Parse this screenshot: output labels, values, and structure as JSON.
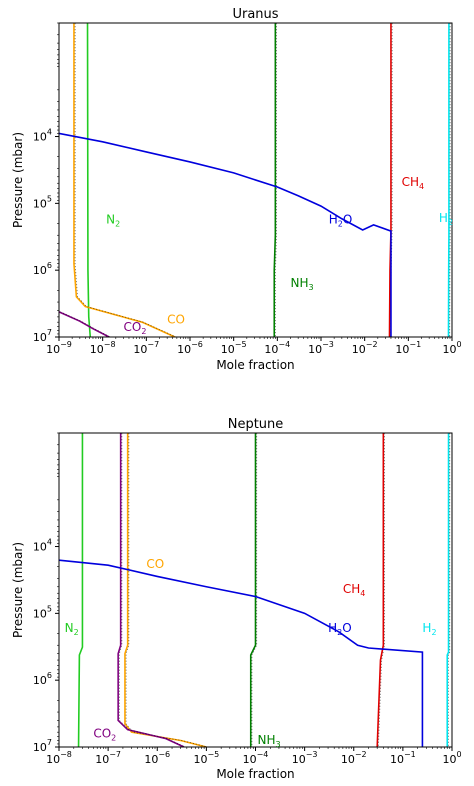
{
  "chart_data": [
    {
      "type": "line",
      "title": "Uranus",
      "xlabel": "Mole fraction",
      "ylabel": "Pressure (mbar)",
      "x_scale": "log",
      "y_scale": "log",
      "y_inverted": true,
      "xlim": [
        1e-09,
        1
      ],
      "ylim": [
        10000000,
        200
      ],
      "x_ticks": [
        {
          "base": "10",
          "exp": "−9",
          "value": 1e-09
        },
        {
          "base": "10",
          "exp": "−8",
          "value": 1e-08
        },
        {
          "base": "10",
          "exp": "−7",
          "value": 1e-07
        },
        {
          "base": "10",
          "exp": "−6",
          "value": 1e-06
        },
        {
          "base": "10",
          "exp": "−5",
          "value": 1e-05
        },
        {
          "base": "10",
          "exp": "−4",
          "value": 0.0001
        },
        {
          "base": "10",
          "exp": "−3",
          "value": 0.001
        },
        {
          "base": "10",
          "exp": "−2",
          "value": 0.01
        },
        {
          "base": "10",
          "exp": "−1",
          "value": 0.1
        },
        {
          "base": "10",
          "exp": "0",
          "value": 1
        }
      ],
      "y_ticks": [
        {
          "base": "10",
          "exp": "4",
          "value": 10000
        },
        {
          "base": "10",
          "exp": "5",
          "value": 100000
        },
        {
          "base": "10",
          "exp": "6",
          "value": 1000000
        },
        {
          "base": "10",
          "exp": "7",
          "value": 10000000
        }
      ],
      "series": [
        {
          "name": "H2",
          "color": "#00e5ee",
          "points": [
            [
              0.85,
              200
            ],
            [
              0.85,
              300000
            ],
            [
              0.84,
              1000000
            ],
            [
              0.83,
              10000000
            ]
          ],
          "dotted": true
        },
        {
          "name": "CH4",
          "color": "#e00000",
          "points": [
            [
              0.04,
              200
            ],
            [
              0.04,
              250000
            ],
            [
              0.038,
              1000000
            ],
            [
              0.037,
              10000000
            ]
          ],
          "dotted": true
        },
        {
          "name": "NH3",
          "color": "#008000",
          "points": [
            [
              9e-05,
              200
            ],
            [
              9e-05,
              300000
            ],
            [
              8.5e-05,
              1000000
            ],
            [
              8.5e-05,
              10000000
            ]
          ],
          "dotted": true
        },
        {
          "name": "N2",
          "color": "#22cc22",
          "points": [
            [
              4.5e-09,
              200
            ],
            [
              4.6e-09,
              1000000
            ],
            [
              4.8e-09,
              5000000
            ],
            [
              5.2e-09,
              10000000
            ]
          ],
          "dotted": false
        },
        {
          "name": "CO",
          "color": "#ffa500",
          "points": [
            [
              2.2e-09,
              200
            ],
            [
              2.2e-09,
              800000
            ],
            [
              2.5e-09,
              2500000
            ],
            [
              4e-09,
              3500000
            ],
            [
              8e-08,
              6000000
            ],
            [
              4.5e-07,
              10000000
            ]
          ],
          "dotted": true
        },
        {
          "name": "CO2",
          "color": "#800080",
          "points": [
            [
              1e-09,
              4200000
            ],
            [
              3e-09,
              5800000
            ],
            [
              6e-09,
              7500000
            ],
            [
              1.4e-08,
              10000000
            ]
          ],
          "dotted": true
        },
        {
          "name": "H2O",
          "color": "#0000dd",
          "points": [
            [
              1e-09,
              9000
            ],
            [
              1e-08,
              12000
            ],
            [
              1e-07,
              17000
            ],
            [
              1e-06,
              24000
            ],
            [
              1e-05,
              35000
            ],
            [
              0.0001,
              57000
            ],
            [
              0.0003,
              77000
            ],
            [
              0.001,
              110000
            ],
            [
              0.003,
              170000
            ],
            [
              0.009,
              250000
            ],
            [
              0.016,
              210000
            ],
            [
              0.04,
              260000
            ],
            [
              0.04,
              10000000
            ]
          ],
          "dotted": false
        }
      ],
      "labels": [
        {
          "base": "H",
          "sub": "2",
          "color": "#00e5ee",
          "x": 0.5,
          "y": 190000
        },
        {
          "base": "CH",
          "sub": "4",
          "color": "#e00000",
          "x": 0.07,
          "y": 55000
        },
        {
          "base": "NH",
          "sub": "3",
          "color": "#008000",
          "x": 0.0002,
          "y": 1800000
        },
        {
          "base": "N",
          "sub": "2",
          "color": "#22cc22",
          "x": 1.2e-08,
          "y": 200000
        },
        {
          "base": "CO",
          "sub": "",
          "color": "#ffa500",
          "x": 3e-07,
          "y": 6300000
        },
        {
          "base": "CO",
          "sub": "2",
          "color": "#800080",
          "x": 3e-08,
          "y": 8200000
        },
        {
          "base": "H",
          "sub": "2",
          "suffix": "O",
          "color": "#0000dd",
          "x": 0.0015,
          "y": 200000
        }
      ]
    },
    {
      "type": "line",
      "title": "Neptune",
      "xlabel": "Mole fraction",
      "ylabel": "Pressure (mbar)",
      "x_scale": "log",
      "y_scale": "log",
      "y_inverted": true,
      "xlim": [
        1e-08,
        1
      ],
      "ylim": [
        10000000,
        200
      ],
      "x_ticks": [
        {
          "base": "10",
          "exp": "−8",
          "value": 1e-08
        },
        {
          "base": "10",
          "exp": "−7",
          "value": 1e-07
        },
        {
          "base": "10",
          "exp": "−6",
          "value": 1e-06
        },
        {
          "base": "10",
          "exp": "−5",
          "value": 1e-05
        },
        {
          "base": "10",
          "exp": "−4",
          "value": 0.0001
        },
        {
          "base": "10",
          "exp": "−3",
          "value": 0.001
        },
        {
          "base": "10",
          "exp": "−2",
          "value": 0.01
        },
        {
          "base": "10",
          "exp": "−1",
          "value": 0.1
        },
        {
          "base": "10",
          "exp": "0",
          "value": 1
        }
      ],
      "y_ticks": [
        {
          "base": "10",
          "exp": "4",
          "value": 10000
        },
        {
          "base": "10",
          "exp": "5",
          "value": 100000
        },
        {
          "base": "10",
          "exp": "6",
          "value": 1000000
        },
        {
          "base": "10",
          "exp": "7",
          "value": 10000000
        }
      ],
      "series": [
        {
          "name": "H2",
          "color": "#00e5ee",
          "points": [
            [
              0.85,
              200
            ],
            [
              0.85,
              380000
            ],
            [
              0.8,
              420000
            ],
            [
              0.8,
              10000000
            ]
          ],
          "dotted": true
        },
        {
          "name": "CH4",
          "color": "#e00000",
          "points": [
            [
              0.04,
              200
            ],
            [
              0.04,
              300000
            ],
            [
              0.035,
              500000
            ],
            [
              0.03,
              10000000
            ]
          ],
          "dotted": true
        },
        {
          "name": "NH3",
          "color": "#008000",
          "points": [
            [
              0.0001,
              200
            ],
            [
              0.0001,
              300000
            ],
            [
              8e-05,
              420000
            ],
            [
              8e-05,
              10000000
            ]
          ],
          "dotted": true
        },
        {
          "name": "N2",
          "color": "#22cc22",
          "points": [
            [
              3e-08,
              200
            ],
            [
              3e-08,
              320000
            ],
            [
              2.6e-08,
              420000
            ],
            [
              2.5e-08,
              10000000
            ]
          ],
          "dotted": false
        },
        {
          "name": "CO",
          "color": "#ffa500",
          "points": [
            [
              2.5e-07,
              200
            ],
            [
              2.5e-07,
              300000
            ],
            [
              2.2e-07,
              400000
            ],
            [
              2.2e-07,
              4500000
            ],
            [
              3e-07,
              6000000
            ],
            [
              3e-06,
              8000000
            ],
            [
              1e-05,
              10000000
            ]
          ],
          "dotted": true
        },
        {
          "name": "CO2",
          "color": "#800080",
          "points": [
            [
              1.8e-07,
              200
            ],
            [
              1.8e-07,
              300000
            ],
            [
              1.6e-07,
              400000
            ],
            [
              1.6e-07,
              4000000
            ],
            [
              2.5e-07,
              5500000
            ],
            [
              1.5e-06,
              7500000
            ],
            [
              3.5e-06,
              10000000
            ]
          ],
          "dotted": true
        },
        {
          "name": "H2O",
          "color": "#0000dd",
          "points": [
            [
              1e-08,
              16000
            ],
            [
              1e-07,
              19000
            ],
            [
              1e-06,
              28000
            ],
            [
              1e-05,
              40000
            ],
            [
              0.0001,
              56000
            ],
            [
              0.001,
              100000
            ],
            [
              0.005,
              190000
            ],
            [
              0.012,
              300000
            ],
            [
              0.02,
              330000
            ],
            [
              0.25,
              380000
            ],
            [
              0.25,
              10000000
            ]
          ],
          "dotted": false
        }
      ],
      "labels": [
        {
          "base": "H",
          "sub": "2",
          "color": "#00e5ee",
          "x": 0.25,
          "y": 190000
        },
        {
          "base": "CH",
          "sub": "4",
          "color": "#e00000",
          "x": 0.006,
          "y": 50000
        },
        {
          "base": "NH",
          "sub": "3",
          "color": "#008000",
          "x": 0.00011,
          "y": 9000000
        },
        {
          "base": "N",
          "sub": "2",
          "color": "#22cc22",
          "x": 1.3e-08,
          "y": 190000
        },
        {
          "base": "CO",
          "sub": "",
          "color": "#ffa500",
          "x": 6e-07,
          "y": 21000
        },
        {
          "base": "CO",
          "sub": "2",
          "color": "#800080",
          "x": 5e-08,
          "y": 7200000
        },
        {
          "base": "H",
          "sub": "2",
          "suffix": "O",
          "color": "#0000dd",
          "x": 0.003,
          "y": 190000
        }
      ]
    }
  ]
}
